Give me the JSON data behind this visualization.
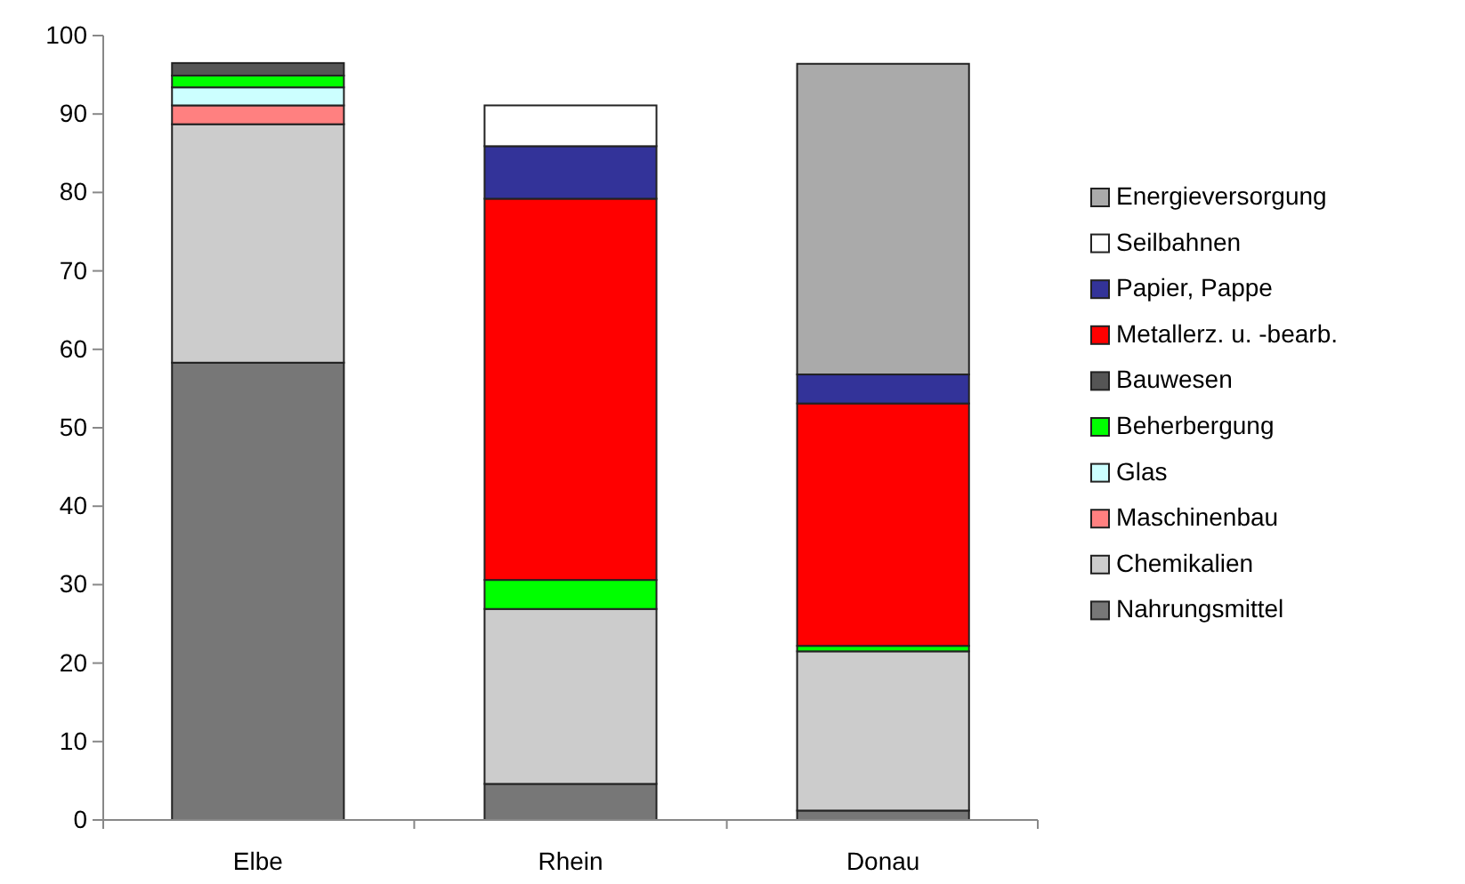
{
  "chart_data": {
    "type": "bar",
    "stacked": true,
    "categories": [
      "Elbe",
      "Rhein",
      "Donau"
    ],
    "ylim": [
      0,
      100
    ],
    "yticks": [
      0,
      10,
      20,
      30,
      40,
      50,
      60,
      70,
      80,
      90,
      100
    ],
    "grid": false,
    "legend": "right",
    "series": [
      {
        "name": "Nahrungsmittel",
        "color": "#777777",
        "values": [
          58.3,
          4.6,
          1.2
        ]
      },
      {
        "name": "Chemikalien",
        "color": "#cccccc",
        "values": [
          30.4,
          22.3,
          20.3
        ]
      },
      {
        "name": "Maschinenbau",
        "color": "#ff8080",
        "values": [
          2.4,
          null,
          null
        ]
      },
      {
        "name": "Glas",
        "color": "#ccffff",
        "values": [
          2.3,
          null,
          null
        ]
      },
      {
        "name": "Beherbergung",
        "color": "#00ff00",
        "values": [
          1.5,
          3.7,
          0.7
        ]
      },
      {
        "name": "Bauwesen",
        "color": "#555555",
        "values": [
          1.6,
          null,
          null
        ]
      },
      {
        "name": "Metallerz. u. -bearb.",
        "color": "#ff0000",
        "values": [
          null,
          48.6,
          30.9
        ]
      },
      {
        "name": "Papier, Pappe",
        "color": "#333399",
        "values": [
          null,
          6.7,
          3.7
        ]
      },
      {
        "name": "Seilbahnen",
        "color": "#ffffff",
        "values": [
          null,
          5.2,
          null
        ]
      },
      {
        "name": "Energieversorgung",
        "color": "#aaaaaa",
        "values": [
          null,
          null,
          39.6
        ]
      }
    ]
  }
}
